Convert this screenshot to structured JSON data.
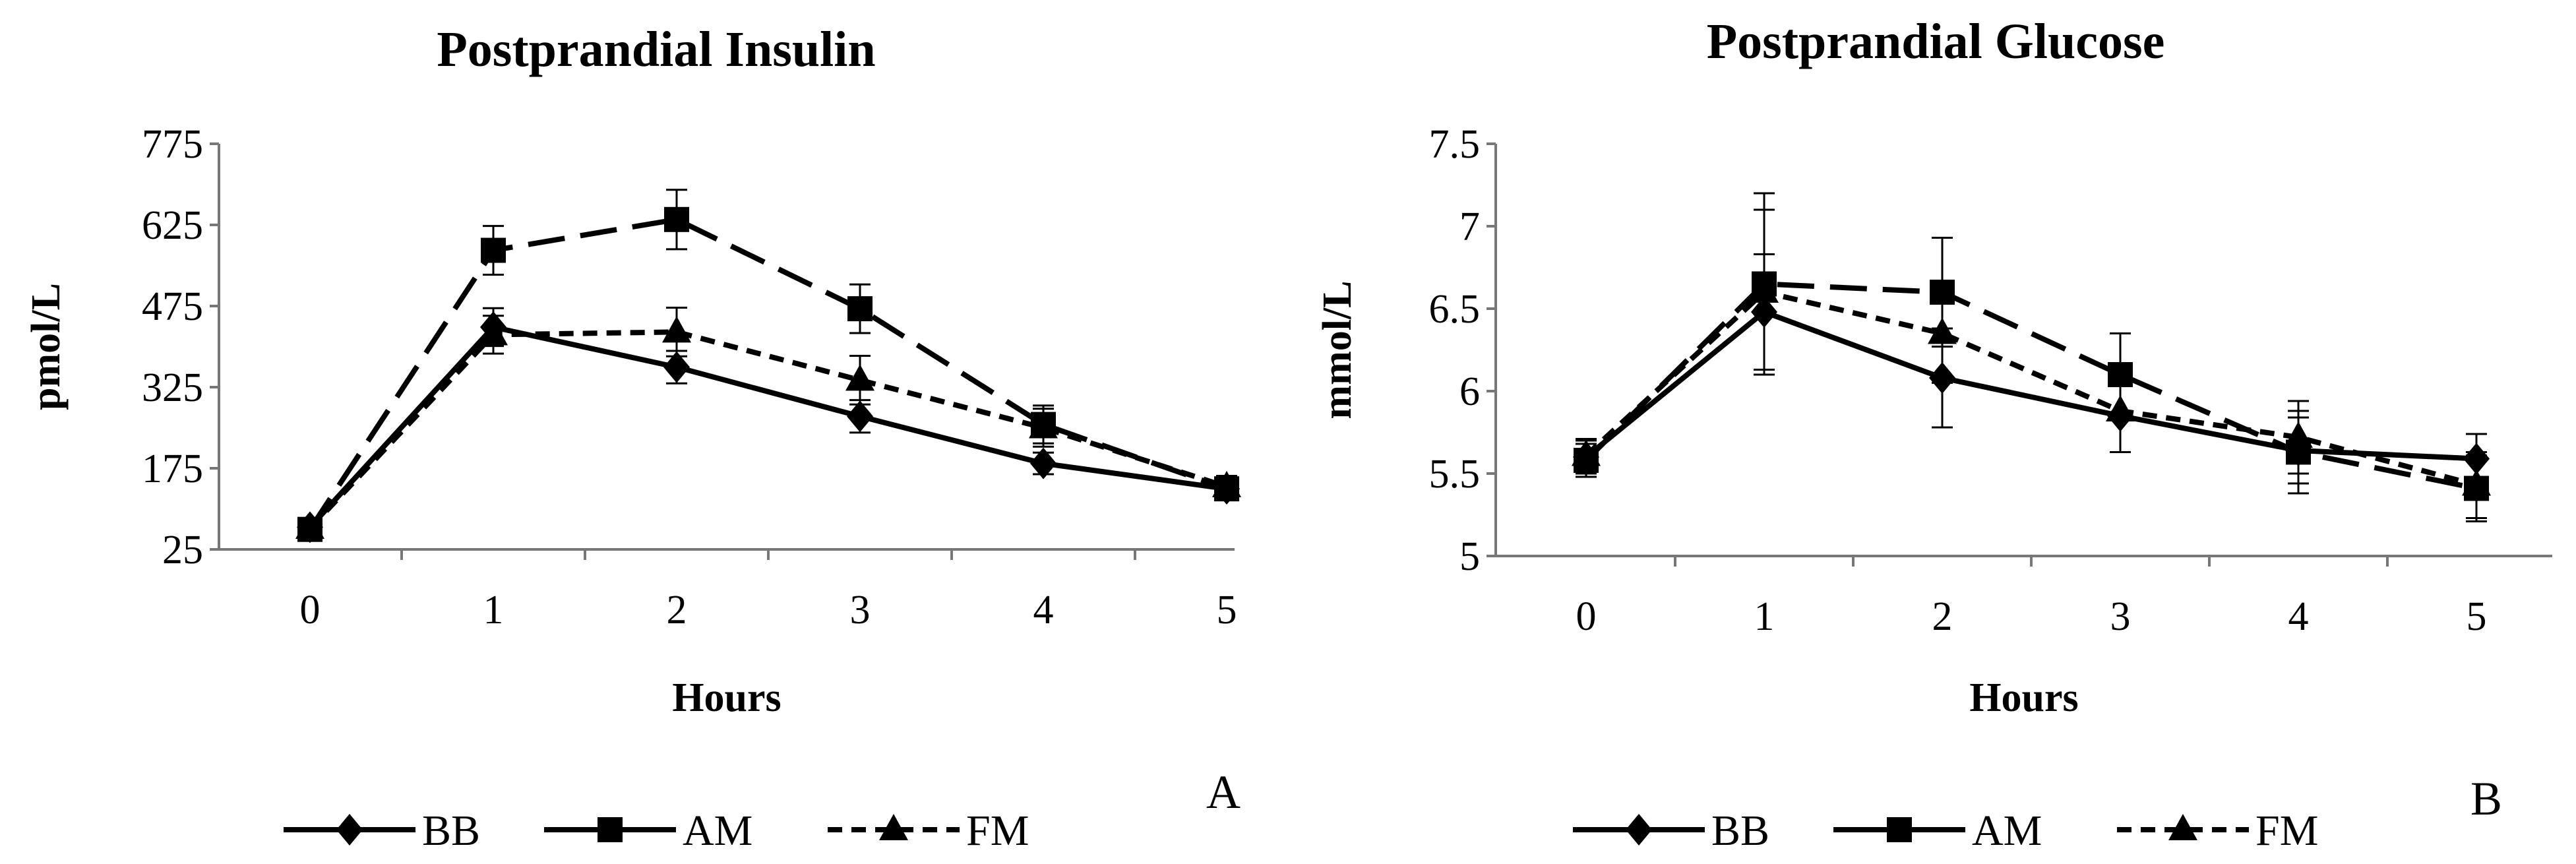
{
  "chart_data": [
    {
      "type": "line",
      "title": "Postprandial Insulin",
      "xlabel": "Hours",
      "ylabel": "pmol/L",
      "panel_label": "A",
      "x": [
        0,
        1,
        2,
        3,
        4,
        5
      ],
      "x_ticks": [
        "0",
        "1",
        "2",
        "3",
        "4",
        "5"
      ],
      "ylim": [
        25,
        775
      ],
      "y_ticks": [
        25,
        175,
        325,
        475,
        625,
        775
      ],
      "series": [
        {
          "name": "BB",
          "marker": "diamond",
          "dash": "solid",
          "values": [
            66,
            436,
            362,
            271,
            184,
            137
          ],
          "errors": [
            12,
            35,
            30,
            30,
            20,
            20
          ]
        },
        {
          "name": "AM",
          "marker": "square",
          "dash": "long",
          "values": [
            62,
            578,
            635,
            470,
            256,
            137
          ],
          "errors": [
            10,
            45,
            55,
            45,
            35,
            20
          ]
        },
        {
          "name": "FM",
          "marker": "triangle",
          "dash": "short",
          "values": [
            64,
            422,
            427,
            338,
            250,
            141
          ],
          "errors": [
            10,
            35,
            45,
            45,
            35,
            20
          ]
        }
      ]
    },
    {
      "type": "line",
      "title": "Postprandial Glucose",
      "xlabel": "Hours",
      "ylabel": "mmol/L",
      "panel_label": "B",
      "x": [
        0,
        1,
        2,
        3,
        4,
        5
      ],
      "x_ticks": [
        "0",
        "1",
        "2",
        "3",
        "4",
        "5"
      ],
      "ylim": [
        5,
        7.5
      ],
      "y_ticks": [
        5,
        5.5,
        6,
        6.5,
        7,
        7.5
      ],
      "y_tick_labels": [
        "5",
        "5.5",
        "6",
        "6.5",
        "7",
        "7.5"
      ],
      "series": [
        {
          "name": "BB",
          "marker": "diamond",
          "dash": "solid",
          "values": [
            5.6,
            6.48,
            6.08,
            5.85,
            5.64,
            5.59
          ],
          "errors": [
            0.1,
            0.35,
            0.3,
            0.22,
            0.2,
            0.15
          ]
        },
        {
          "name": "AM",
          "marker": "square",
          "dash": "long",
          "values": [
            5.58,
            6.65,
            6.6,
            6.1,
            5.63,
            5.41
          ],
          "errors": [
            0.1,
            0.55,
            0.33,
            0.25,
            0.25,
            0.2
          ]
        },
        {
          "name": "FM",
          "marker": "triangle",
          "dash": "short",
          "values": [
            5.61,
            6.6,
            6.35,
            5.88,
            5.72,
            5.43
          ],
          "errors": [
            0.1,
            0.5,
            0.3,
            0.25,
            0.22,
            0.2
          ]
        }
      ]
    }
  ]
}
